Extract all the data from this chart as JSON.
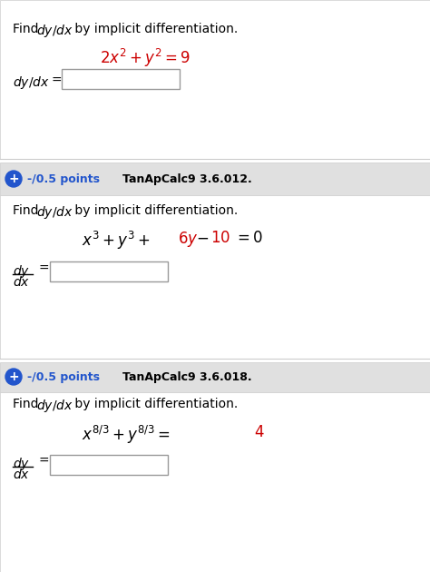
{
  "bg_color": "#ffffff",
  "section_bg": "#f0f0f0",
  "header_bg": "#e8e8e8",
  "blue_circle_color": "#2255cc",
  "red_color": "#cc0000",
  "black_color": "#000000",
  "gray_color": "#888888",
  "box_border": "#aaaaaa",
  "section1": {
    "find_text": "Find ",
    "dydx_italic": "dy/dx",
    "by_text": " by implicit differentiation.",
    "equation_parts": [
      {
        "text": "2",
        "color": "#cc0000",
        "style": "normal"
      },
      {
        "text": "x",
        "color": "#cc0000",
        "style": "italic"
      },
      {
        "text": "2",
        "color": "#cc0000",
        "style": "superscript"
      },
      {
        "text": " + ",
        "color": "#cc0000",
        "style": "normal"
      },
      {
        "text": "y",
        "color": "#cc0000",
        "style": "italic"
      },
      {
        "text": "2",
        "color": "#cc0000",
        "style": "superscript"
      },
      {
        "text": " = ",
        "color": "#cc0000",
        "style": "normal"
      },
      {
        "text": "9",
        "color": "#cc0000",
        "style": "normal"
      }
    ],
    "equation_latex": "$2x^2 + y^2 = 9$",
    "answer_label": "$dy/dx$  =",
    "answer_label_italic": "dy/dx ="
  },
  "section2": {
    "header_points": "-/0.5 points",
    "header_title": "TanApCalc9 3.6.012.",
    "equation_latex": "$x^3 + y^3 + 6y - 10 = 0$",
    "eq_parts_colors": [
      "black",
      "black",
      "black",
      "#cc0000",
      "#cc0000",
      "black",
      "black"
    ],
    "answer_label": "dy/dx ="
  },
  "section3": {
    "header_points": "-/0.5 points",
    "header_title": "TanApCalc9 3.6.018.",
    "equation_latex": "$x^{8/3} + y^{8/3} = 4$",
    "answer_label": "dy/dx ="
  }
}
